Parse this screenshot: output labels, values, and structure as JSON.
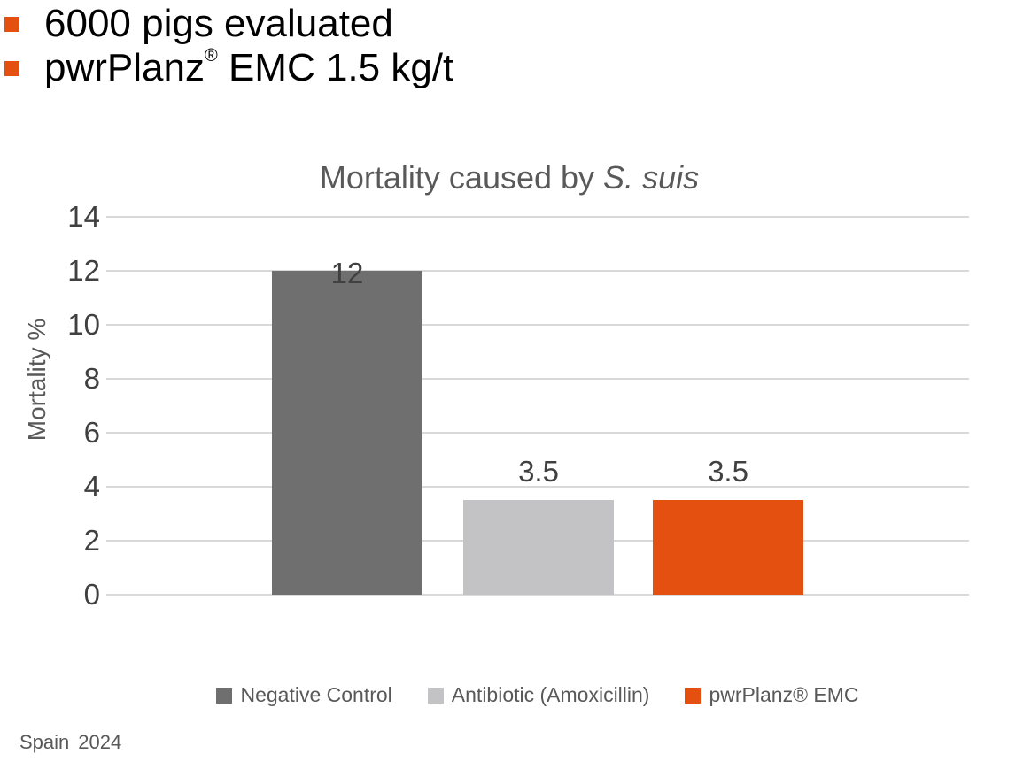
{
  "colors": {
    "accent_orange": "#E4500F",
    "dark_gray": "#6F6F6F",
    "light_gray": "#C3C3C5",
    "gridline": "#D9D9D9",
    "title_text": "#595959",
    "tick_text": "#404040"
  },
  "bullets": {
    "marker_color": "#E4500F",
    "items": [
      {
        "pre": "6000 pigs evaluated",
        "sup": "",
        "post": ""
      },
      {
        "pre": "pwrPlanz",
        "sup": "®",
        "post": " EMC 1.5 kg/t"
      }
    ]
  },
  "chart_data": {
    "type": "bar",
    "title": "Mortality caused by S. suis",
    "title_plain": "Mortality caused by ",
    "title_italic": "S. suis",
    "categories": [
      "Negative Control",
      "Antibiotic (Amoxicillin)",
      "pwrPlanz® EMC"
    ],
    "values": [
      12,
      3.5,
      3.5
    ],
    "value_labels": [
      "12",
      "3.5",
      "3.5"
    ],
    "bar_colors": [
      "#6F6F6F",
      "#C3C3C5",
      "#E4500F"
    ],
    "ylabel": "Mortality %",
    "ylim": [
      0,
      14
    ],
    "yticks": [
      0,
      2,
      4,
      6,
      8,
      10,
      12,
      14
    ],
    "grid": true,
    "gridline_color": "#D9D9D9",
    "legend_position": "bottom",
    "legend": [
      {
        "label": "Negative Control",
        "color": "#6F6F6F"
      },
      {
        "label": "Antibiotic (Amoxicillin)",
        "color": "#C3C3C5"
      },
      {
        "label": "pwrPlanz® EMC",
        "color": "#E4500F"
      }
    ]
  },
  "footer": {
    "location": "Spain",
    "year": "2024"
  }
}
